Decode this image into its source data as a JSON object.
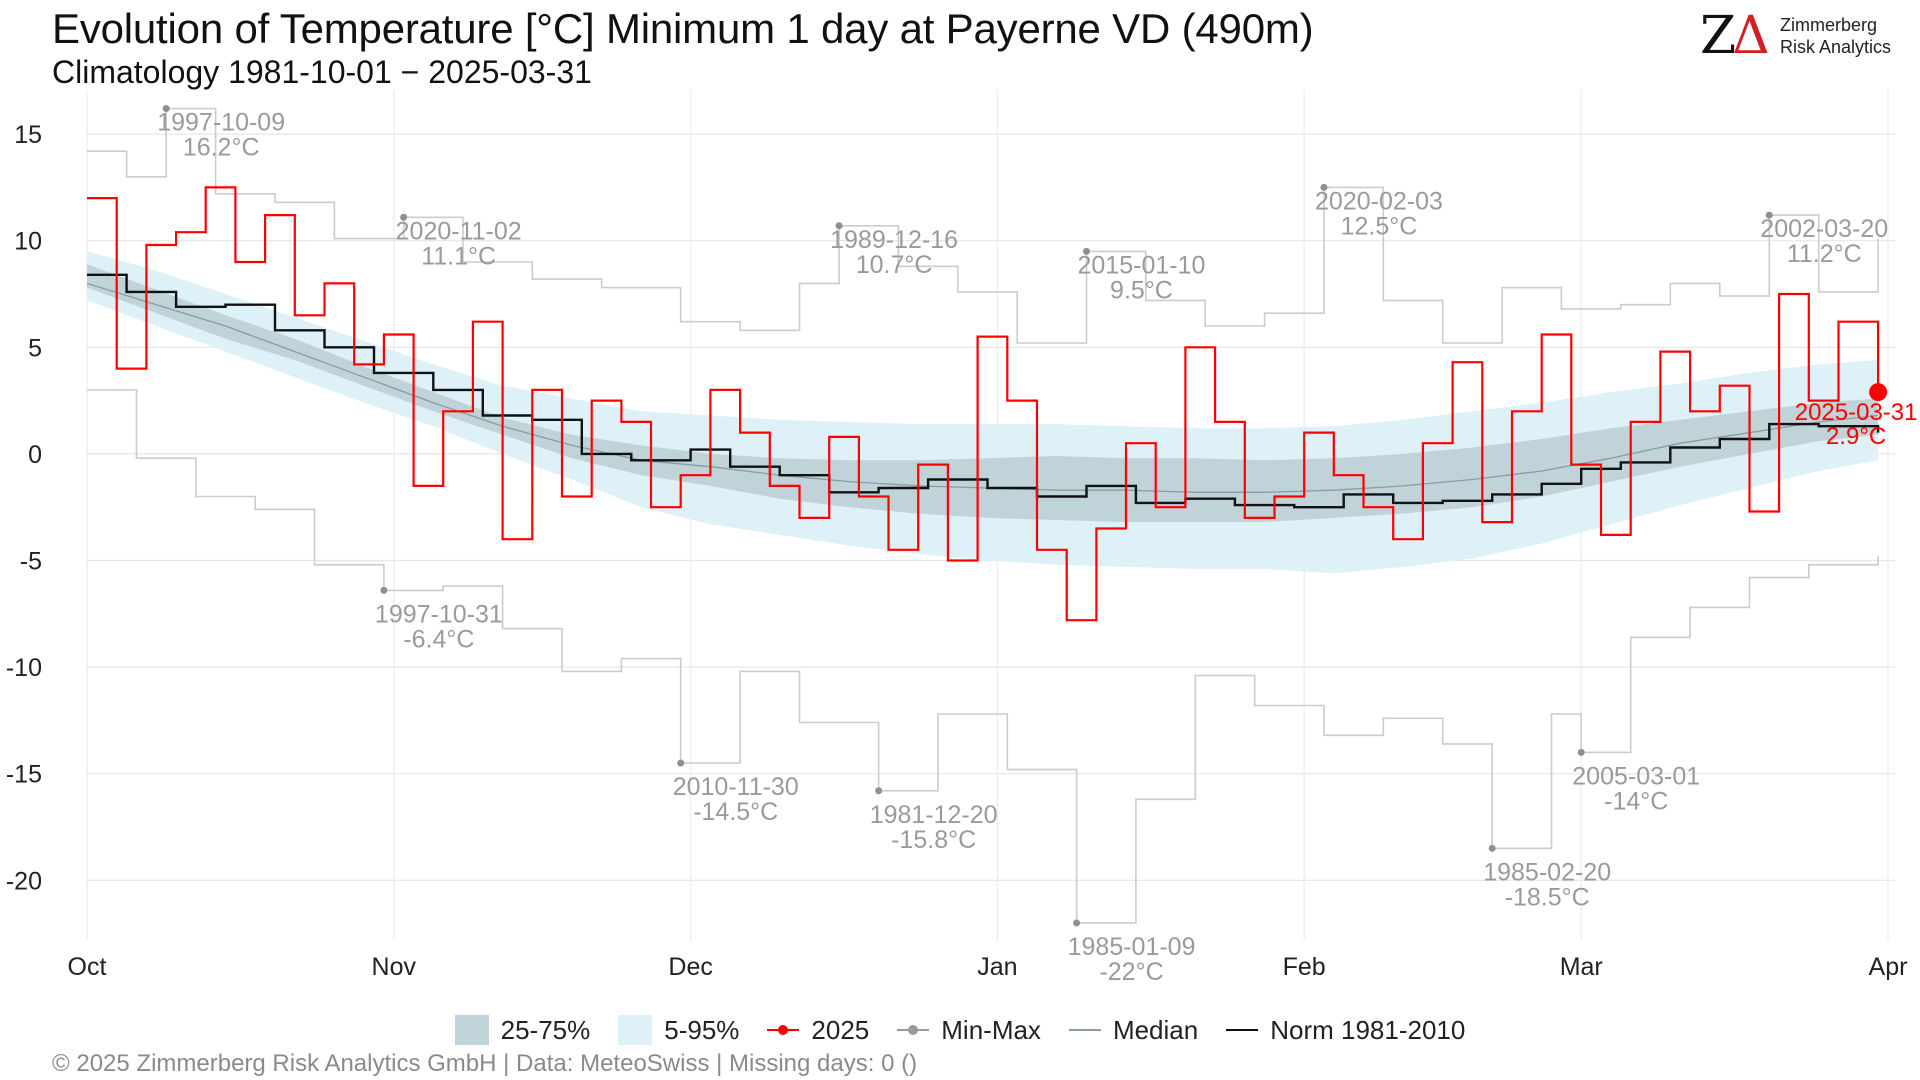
{
  "header": {
    "title": "Evolution of Temperature [°C] Minimum 1 day at Payerne  VD (490m)",
    "subtitle": "Climatology 1981-10-01 − 2025-03-31"
  },
  "logo": {
    "mark_z": "Z",
    "mark_delta": "Δ",
    "line1": "Zimmerberg",
    "line2": "Risk Analytics"
  },
  "legend": {
    "iqr_label": "25-75%",
    "p5_95_label": "5-95%",
    "current_label": "2025",
    "minmax_label": "Min-Max",
    "median_label": "Median",
    "norm_label": "Norm 1981-2010"
  },
  "footer": {
    "text": "©  2025 Zimmerberg Risk Analytics GmbH | Data: MeteoSwiss | Missing days: 0 ()"
  },
  "colors": {
    "current": "#ff0000",
    "norm": "#111111",
    "median": "#8a9ba3",
    "minmax": "#cccccc",
    "iqr": "#c0d3d9",
    "p5_95": "#dff1f8",
    "annotation": "#9a9a9a"
  },
  "chart_data": {
    "type": "line",
    "x_axis": {
      "start": "1981-10-01",
      "end": "2025-03-31",
      "tick_labels": [
        "Oct",
        "Nov",
        "Dec",
        "Jan",
        "Feb",
        "Mar",
        "Apr"
      ],
      "tick_dates": [
        "10-01",
        "11-01",
        "12-01",
        "01-01",
        "02-01",
        "03-01",
        "04-01"
      ]
    },
    "y_axis": {
      "ylim": [
        -22.8,
        16.6
      ],
      "ticks": [
        15,
        10,
        5,
        0,
        -5,
        -10,
        -15,
        -20
      ]
    },
    "grid": true,
    "legend_position": "bottom",
    "bands_weekly": {
      "dates": [
        "10-01",
        "10-08",
        "10-15",
        "10-22",
        "10-29",
        "11-05",
        "11-12",
        "11-19",
        "11-26",
        "12-03",
        "12-10",
        "12-17",
        "12-24",
        "12-31",
        "01-07",
        "01-14",
        "01-21",
        "01-28",
        "02-04",
        "02-11",
        "02-18",
        "02-25",
        "03-04",
        "03-11",
        "03-18",
        "03-25",
        "03-31"
      ],
      "p5": [
        7.2,
        6.0,
        4.8,
        3.6,
        2.4,
        1.3,
        0.0,
        -1.2,
        -2.5,
        -3.3,
        -3.8,
        -4.3,
        -4.7,
        -5.0,
        -5.2,
        -5.3,
        -5.4,
        -5.4,
        -5.6,
        -5.3,
        -4.9,
        -4.2,
        -3.3,
        -2.4,
        -1.6,
        -0.8,
        -0.3
      ],
      "p25": [
        7.8,
        6.6,
        5.4,
        4.4,
        3.2,
        2.0,
        0.9,
        -0.2,
        -1.0,
        -1.5,
        -2.1,
        -2.5,
        -2.8,
        -3.0,
        -3.1,
        -3.2,
        -3.2,
        -3.2,
        -3.0,
        -2.8,
        -2.5,
        -2.0,
        -1.3,
        -0.6,
        0.0,
        0.6,
        0.9
      ],
      "p75": [
        8.9,
        7.7,
        6.5,
        5.4,
        4.1,
        2.9,
        1.7,
        0.9,
        0.4,
        0.0,
        -0.2,
        -0.3,
        -0.3,
        -0.2,
        -0.1,
        -0.2,
        -0.2,
        -0.3,
        -0.2,
        0.0,
        0.3,
        0.7,
        1.2,
        1.6,
        2.0,
        2.4,
        2.6
      ],
      "p95": [
        9.5,
        8.6,
        7.5,
        6.4,
        5.3,
        4.2,
        3.2,
        2.6,
        2.0,
        1.8,
        1.6,
        1.5,
        1.4,
        1.4,
        1.4,
        1.3,
        1.2,
        1.2,
        1.3,
        1.6,
        2.0,
        2.4,
        2.9,
        3.3,
        3.8,
        4.2,
        4.4
      ]
    },
    "median_weekly": {
      "dates": [
        "10-01",
        "10-08",
        "10-15",
        "10-22",
        "10-29",
        "11-05",
        "11-12",
        "11-19",
        "11-26",
        "12-03",
        "12-10",
        "12-17",
        "12-24",
        "12-31",
        "01-07",
        "01-14",
        "01-21",
        "01-28",
        "02-04",
        "02-11",
        "02-18",
        "02-25",
        "03-04",
        "03-11",
        "03-18",
        "03-25",
        "03-31"
      ],
      "values": [
        8.0,
        7.0,
        6.0,
        4.8,
        3.6,
        2.4,
        1.3,
        0.4,
        -0.3,
        -0.6,
        -1.0,
        -1.3,
        -1.5,
        -1.6,
        -1.7,
        -1.7,
        -1.8,
        -1.8,
        -1.7,
        -1.5,
        -1.2,
        -0.8,
        -0.2,
        0.5,
        1.0,
        1.5,
        1.8
      ]
    },
    "norm_weekly": {
      "dates": [
        "10-01",
        "10-05",
        "10-10",
        "10-15",
        "10-20",
        "10-25",
        "10-30",
        "11-05",
        "11-10",
        "11-15",
        "11-20",
        "11-25",
        "12-01",
        "12-05",
        "12-10",
        "12-15",
        "12-20",
        "12-25",
        "12-31",
        "01-05",
        "01-10",
        "01-15",
        "01-20",
        "01-25",
        "01-31",
        "02-05",
        "02-10",
        "02-15",
        "02-20",
        "02-25",
        "03-01",
        "03-05",
        "03-10",
        "03-15",
        "03-20",
        "03-25",
        "03-31"
      ],
      "values": [
        8.4,
        7.6,
        6.9,
        7.0,
        5.8,
        5.0,
        3.8,
        3.0,
        1.8,
        1.6,
        0.0,
        -0.3,
        0.2,
        -0.6,
        -1.0,
        -1.8,
        -1.6,
        -1.2,
        -1.6,
        -2.0,
        -1.5,
        -2.3,
        -2.1,
        -2.4,
        -2.5,
        -1.9,
        -2.3,
        -2.2,
        -1.9,
        -1.4,
        -0.7,
        -0.4,
        0.3,
        0.7,
        1.4,
        1.3,
        1.0
      ]
    },
    "max_weekly": {
      "dates": [
        "10-01",
        "10-05",
        "10-09",
        "10-14",
        "10-20",
        "10-26",
        "11-02",
        "11-08",
        "11-15",
        "11-22",
        "11-30",
        "12-06",
        "12-12",
        "12-16",
        "12-22",
        "12-28",
        "01-03",
        "01-10",
        "01-16",
        "01-22",
        "01-28",
        "02-03",
        "02-09",
        "02-15",
        "02-21",
        "02-27",
        "03-05",
        "03-10",
        "03-15",
        "03-20",
        "03-25",
        "03-31"
      ],
      "values": [
        14.2,
        13.0,
        16.2,
        12.2,
        11.8,
        10.1,
        11.1,
        9.0,
        8.2,
        7.8,
        6.2,
        5.8,
        8.0,
        10.7,
        8.8,
        7.6,
        5.2,
        9.5,
        7.2,
        6.0,
        6.6,
        12.5,
        7.2,
        5.2,
        7.8,
        6.8,
        7.0,
        8.0,
        7.4,
        11.2,
        7.6,
        10.1
      ]
    },
    "min_weekly": {
      "dates": [
        "10-01",
        "10-06",
        "10-12",
        "10-18",
        "10-24",
        "10-31",
        "11-06",
        "11-12",
        "11-18",
        "11-24",
        "11-30",
        "12-06",
        "12-12",
        "12-20",
        "12-26",
        "01-02",
        "01-09",
        "01-15",
        "01-21",
        "01-27",
        "02-03",
        "02-09",
        "02-15",
        "02-20",
        "02-26",
        "03-01",
        "03-06",
        "03-12",
        "03-18",
        "03-24",
        "03-31"
      ],
      "values": [
        3.0,
        -0.2,
        -2.0,
        -2.6,
        -5.2,
        -6.4,
        -6.2,
        -8.2,
        -10.2,
        -9.6,
        -14.5,
        -10.2,
        -12.6,
        -15.8,
        -12.2,
        -14.8,
        -22.0,
        -16.2,
        -10.4,
        -11.8,
        -13.2,
        -12.4,
        -13.6,
        -18.5,
        -12.2,
        -14.0,
        -8.6,
        -7.2,
        -5.8,
        -5.2,
        -4.8
      ]
    },
    "series_2025": {
      "name": "2025",
      "dates": [
        "10-01",
        "10-04",
        "10-07",
        "10-10",
        "10-13",
        "10-16",
        "10-19",
        "10-22",
        "10-25",
        "10-28",
        "10-31",
        "11-03",
        "11-06",
        "11-09",
        "11-12",
        "11-15",
        "11-18",
        "11-21",
        "11-24",
        "11-27",
        "11-30",
        "12-03",
        "12-06",
        "12-09",
        "12-12",
        "12-15",
        "12-18",
        "12-21",
        "12-24",
        "12-27",
        "12-30",
        "01-02",
        "01-05",
        "01-08",
        "01-11",
        "01-14",
        "01-17",
        "01-20",
        "01-23",
        "01-26",
        "01-29",
        "02-01",
        "02-04",
        "02-07",
        "02-10",
        "02-13",
        "02-16",
        "02-19",
        "02-22",
        "02-25",
        "02-28",
        "03-03",
        "03-06",
        "03-09",
        "03-12",
        "03-15",
        "03-18",
        "03-21",
        "03-24",
        "03-27",
        "03-31"
      ],
      "values": [
        12.0,
        4.0,
        9.8,
        10.4,
        12.5,
        9.0,
        11.2,
        6.5,
        8.0,
        4.2,
        5.6,
        -1.5,
        2.0,
        6.2,
        -4.0,
        3.0,
        -2.0,
        2.5,
        1.5,
        -2.5,
        -1.0,
        3.0,
        1.0,
        -1.5,
        -3.0,
        0.8,
        -2.0,
        -4.5,
        -0.5,
        -5.0,
        5.5,
        2.5,
        -4.5,
        -7.8,
        -3.5,
        0.5,
        -2.5,
        5.0,
        1.5,
        -3.0,
        -2.0,
        1.0,
        -1.0,
        -2.5,
        -4.0,
        0.5,
        4.3,
        -3.2,
        2.0,
        5.6,
        -0.5,
        -3.8,
        1.5,
        4.8,
        2.0,
        3.2,
        -2.7,
        7.5,
        2.5,
        6.2,
        2.9
      ]
    },
    "current_point": {
      "date": "2025-03-31",
      "value": 2.9,
      "label_date": "2025-03-31",
      "label_value": "2.9°C"
    },
    "annotations": [
      {
        "date": "1997-10-09",
        "value": 16.2,
        "label": "1997-10-09",
        "value_label": "16.2°C"
      },
      {
        "date": "2020-11-02",
        "value": 11.1,
        "label": "2020-11-02",
        "value_label": "11.1°C"
      },
      {
        "date": "1989-12-16",
        "value": 10.7,
        "label": "1989-12-16",
        "value_label": "10.7°C"
      },
      {
        "date": "2015-01-10",
        "value": 9.5,
        "label": "2015-01-10",
        "value_label": "9.5°C"
      },
      {
        "date": "2020-02-03",
        "value": 12.5,
        "label": "2020-02-03",
        "value_label": "12.5°C"
      },
      {
        "date": "2002-03-20",
        "value": 11.2,
        "label": "2002-03-20",
        "value_label": "11.2°C"
      },
      {
        "date": "1997-10-31",
        "value": -6.4,
        "label": "1997-10-31",
        "value_label": "-6.4°C"
      },
      {
        "date": "2010-11-30",
        "value": -14.5,
        "label": "2010-11-30",
        "value_label": "-14.5°C"
      },
      {
        "date": "1981-12-20",
        "value": -15.8,
        "label": "1981-12-20",
        "value_label": "-15.8°C"
      },
      {
        "date": "1985-01-09",
        "value": -22.0,
        "label": "1985-01-09",
        "value_label": "-22°C"
      },
      {
        "date": "1985-02-20",
        "value": -18.5,
        "label": "1985-02-20",
        "value_label": "-18.5°C"
      },
      {
        "date": "2005-03-01",
        "value": -14.0,
        "label": "2005-03-01",
        "value_label": "-14°C"
      }
    ]
  }
}
